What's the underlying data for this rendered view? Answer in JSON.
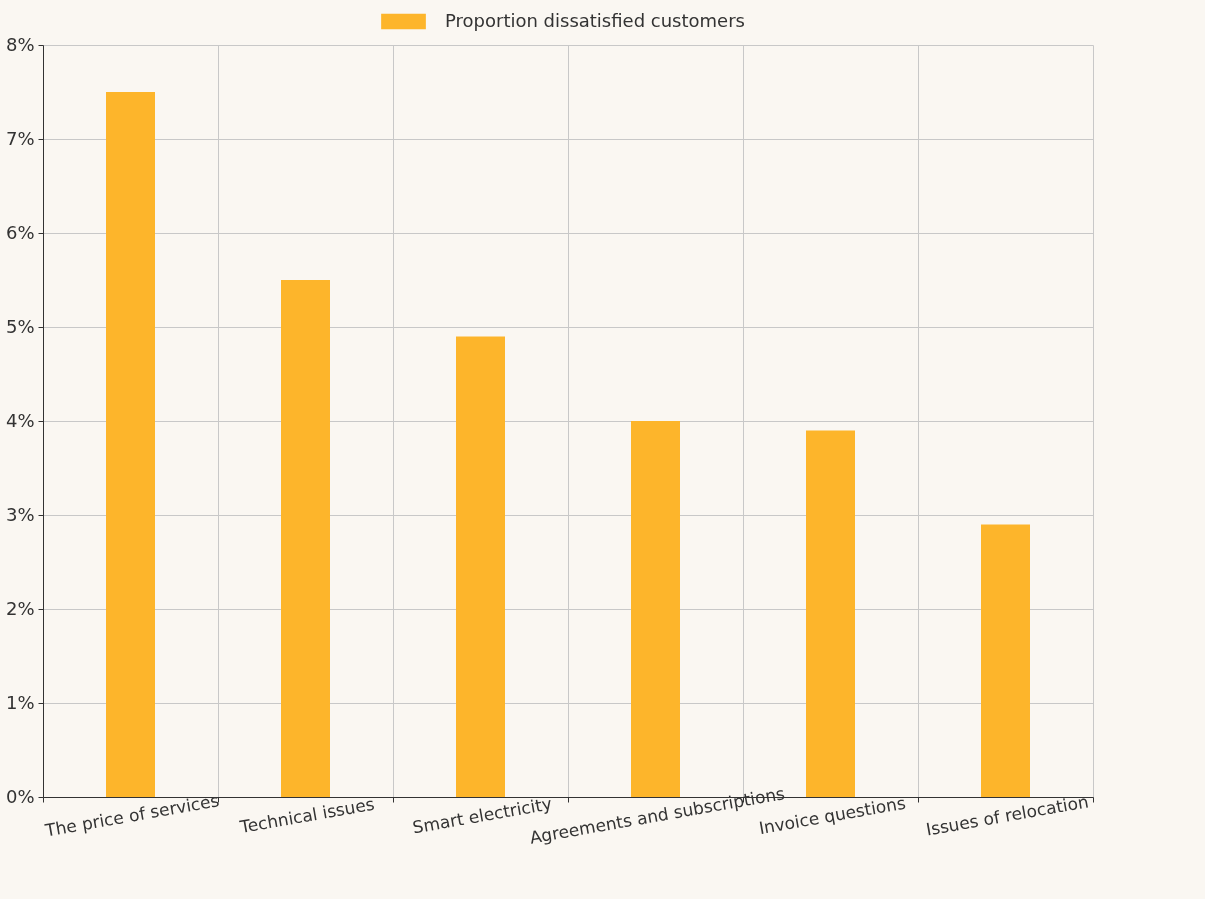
{
  "chart_data": {
    "type": "bar",
    "categories": [
      "The price of services",
      "Technical issues",
      "Smart electricity",
      "Agreements and subscriptions",
      "Invoice questions",
      "Issues of relocation"
    ],
    "series": [
      {
        "name": "Proportion dissatisfied customers",
        "color": "#fdb52b",
        "values": [
          7.5,
          5.5,
          4.9,
          4.0,
          3.9,
          2.9
        ]
      }
    ],
    "ylim": [
      0,
      8
    ],
    "yticks": [
      {
        "value": 0,
        "label": "0%"
      },
      {
        "value": 1,
        "label": "1%"
      },
      {
        "value": 2,
        "label": "2%"
      },
      {
        "value": 3,
        "label": "3%"
      },
      {
        "value": 4,
        "label": "4%"
      },
      {
        "value": 5,
        "label": "5%"
      },
      {
        "value": 6,
        "label": "6%"
      },
      {
        "value": 7,
        "label": "7%"
      },
      {
        "value": 8,
        "label": "8%"
      }
    ],
    "grid": true,
    "legend": "top"
  }
}
